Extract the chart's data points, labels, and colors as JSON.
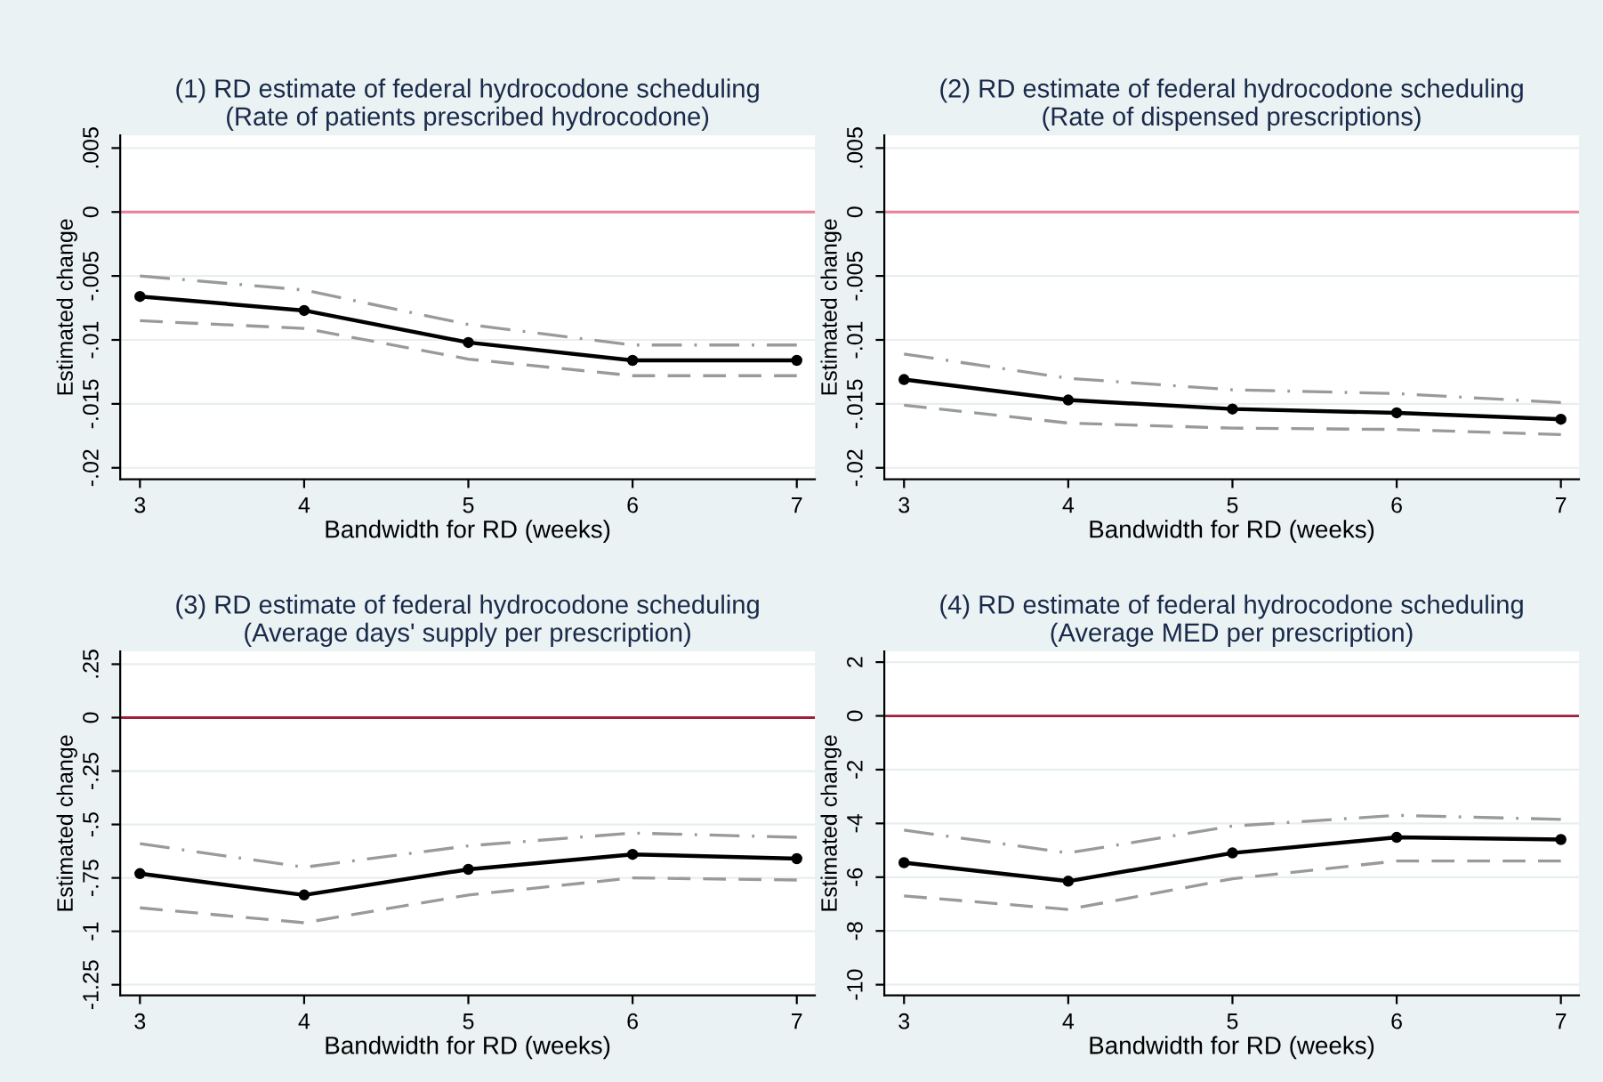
{
  "chart_data": [
    {
      "type": "line",
      "title": "(1) RD estimate of federal hydrocodone scheduling",
      "subtitle": "(Rate of patients prescribed hydrocodone)",
      "xlabel": "Bandwidth for RD (weeks)",
      "ylabel": "Estimated change",
      "x": [
        3,
        4,
        5,
        6,
        7
      ],
      "series": [
        {
          "color": "#000000",
          "marker": "circle",
          "line_style": "solid",
          "values": [
            -0.0066,
            -0.0077,
            -0.0102,
            -0.0116,
            -0.0116
          ]
        },
        {
          "color": "#9a9a9a",
          "marker": "none",
          "line_style": "dashdot",
          "values": [
            -0.005,
            -0.0061,
            -0.0088,
            -0.0104,
            -0.0104
          ]
        },
        {
          "color": "#9a9a9a",
          "marker": "none",
          "line_style": "dashed",
          "values": [
            -0.0085,
            -0.0091,
            -0.0115,
            -0.0128,
            -0.0128
          ]
        }
      ],
      "xlim": [
        2.88,
        7.11
      ],
      "xticks": [
        3,
        4,
        5,
        6,
        7
      ],
      "ylim": [
        -0.0209,
        0.006
      ],
      "yticks": [
        {
          "value": 0.005,
          "label": ".005"
        },
        0,
        {
          "value": -0.005,
          "label": "-.005"
        },
        {
          "value": -0.01,
          "label": "-.01"
        },
        {
          "value": -0.015,
          "label": "-.015"
        },
        {
          "value": -0.02,
          "label": "-.02"
        }
      ],
      "ref_lines": [
        {
          "axis": "y",
          "value": 0,
          "color": "#e8809a"
        }
      ],
      "grid": "y"
    },
    {
      "type": "line",
      "title": "(2) RD estimate of federal hydrocodone scheduling",
      "subtitle": "(Rate of dispensed prescriptions)",
      "xlabel": "Bandwidth for RD (weeks)",
      "ylabel": "Estimated change",
      "x": [
        3,
        4,
        5,
        6,
        7
      ],
      "series": [
        {
          "color": "#000000",
          "marker": "circle",
          "line_style": "solid",
          "values": [
            -0.0131,
            -0.0147,
            -0.0154,
            -0.0157,
            -0.0162
          ]
        },
        {
          "color": "#9a9a9a",
          "marker": "none",
          "line_style": "dashdot",
          "values": [
            -0.0111,
            -0.013,
            -0.0139,
            -0.0142,
            -0.0149
          ]
        },
        {
          "color": "#9a9a9a",
          "marker": "none",
          "line_style": "dashed",
          "values": [
            -0.0151,
            -0.0165,
            -0.0169,
            -0.017,
            -0.0174
          ]
        }
      ],
      "xlim": [
        2.88,
        7.11
      ],
      "xticks": [
        3,
        4,
        5,
        6,
        7
      ],
      "ylim": [
        -0.0209,
        0.006
      ],
      "yticks": [
        {
          "value": 0.005,
          "label": ".005"
        },
        0,
        {
          "value": -0.005,
          "label": "-.005"
        },
        {
          "value": -0.01,
          "label": "-.01"
        },
        {
          "value": -0.015,
          "label": "-.015"
        },
        {
          "value": -0.02,
          "label": "-.02"
        }
      ],
      "ref_lines": [
        {
          "axis": "y",
          "value": 0,
          "color": "#e8809a"
        }
      ],
      "grid": "y"
    },
    {
      "type": "line",
      "title": "(3) RD estimate of federal hydrocodone scheduling",
      "subtitle": "(Average days' supply per prescription)",
      "xlabel": "Bandwidth for RD (weeks)",
      "ylabel": "Estimated change",
      "x": [
        3,
        4,
        5,
        6,
        7
      ],
      "series": [
        {
          "color": "#000000",
          "marker": "circle",
          "line_style": "solid",
          "values": [
            -0.73,
            -0.83,
            -0.71,
            -0.64,
            -0.66
          ]
        },
        {
          "color": "#9a9a9a",
          "marker": "none",
          "line_style": "dashdot",
          "values": [
            -0.59,
            -0.7,
            -0.6,
            -0.54,
            -0.56
          ]
        },
        {
          "color": "#9a9a9a",
          "marker": "none",
          "line_style": "dashed",
          "values": [
            -0.89,
            -0.96,
            -0.83,
            -0.75,
            -0.76
          ]
        }
      ],
      "xlim": [
        2.88,
        7.11
      ],
      "xticks": [
        3,
        4,
        5,
        6,
        7
      ],
      "ylim": [
        -1.3,
        0.31
      ],
      "yticks": [
        {
          "value": 0.25,
          "label": ".25"
        },
        0,
        {
          "value": -0.25,
          "label": "-.25"
        },
        {
          "value": -0.5,
          "label": "-.5"
        },
        {
          "value": -0.75,
          "label": "-.75"
        },
        -1,
        {
          "value": -1.25,
          "label": "-1.25"
        }
      ],
      "ref_lines": [
        {
          "axis": "y",
          "value": 0,
          "color": "#a0203a"
        }
      ],
      "grid": "y"
    },
    {
      "type": "line",
      "title": "(4) RD estimate of federal hydrocodone scheduling",
      "subtitle": "(Average MED per prescription)",
      "xlabel": "Bandwidth for RD (weeks)",
      "ylabel": "Estimated change",
      "x": [
        3,
        4,
        5,
        6,
        7
      ],
      "series": [
        {
          "color": "#000000",
          "marker": "circle",
          "line_style": "solid",
          "values": [
            -5.46,
            -6.15,
            -5.1,
            -4.52,
            -4.6
          ]
        },
        {
          "color": "#9a9a9a",
          "marker": "none",
          "line_style": "dashdot",
          "values": [
            -4.25,
            -5.1,
            -4.1,
            -3.7,
            -3.85
          ]
        },
        {
          "color": "#9a9a9a",
          "marker": "none",
          "line_style": "dashed",
          "values": [
            -6.7,
            -7.2,
            -6.06,
            -5.4,
            -5.4
          ]
        }
      ],
      "xlim": [
        2.88,
        7.11
      ],
      "xticks": [
        3,
        4,
        5,
        6,
        7
      ],
      "ylim": [
        -10.4,
        2.4
      ],
      "yticks": [
        2,
        0,
        -2,
        -4,
        -6,
        -8,
        -10
      ],
      "ref_lines": [
        {
          "axis": "y",
          "value": 0,
          "color": "#a0203a"
        }
      ],
      "grid": "y"
    }
  ]
}
